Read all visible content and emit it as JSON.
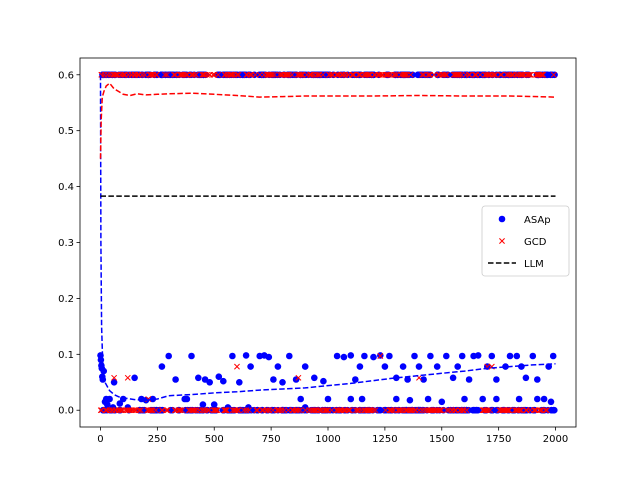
{
  "chart_data": {
    "type": "scatter",
    "title": "",
    "xlabel": "",
    "ylabel": "",
    "xlim": [
      -90,
      2090
    ],
    "ylim": [
      -0.03,
      0.63
    ],
    "x_ticks": [
      0,
      250,
      500,
      750,
      1000,
      1250,
      1500,
      1750,
      2000
    ],
    "x_tick_labels": [
      "0",
      "250",
      "500",
      "750",
      "1000",
      "1250",
      "1500",
      "1750",
      "2000"
    ],
    "y_ticks": [
      0.0,
      0.1,
      0.2,
      0.3,
      0.4,
      0.5,
      0.6
    ],
    "y_tick_labels": [
      "0.0",
      "0.1",
      "0.2",
      "0.3",
      "0.4",
      "0.5",
      "0.6"
    ],
    "grid": false,
    "legend": {
      "placement": "center-right",
      "entries": [
        "ASAp",
        "GCD",
        "LLM"
      ]
    },
    "series": [
      {
        "name": "ASAp",
        "kind": "scatter",
        "marker": "circle",
        "color": "#0000ff",
        "x": [
          0,
          2,
          4,
          6,
          8,
          10,
          14,
          20,
          30,
          60,
          100,
          150,
          180,
          230,
          270,
          300,
          330,
          370,
          400,
          430,
          460,
          480,
          520,
          540,
          560,
          580,
          610,
          640,
          660,
          700,
          720,
          740,
          760,
          780,
          800,
          830,
          860,
          880,
          900,
          940,
          980,
          1040,
          1070,
          1100,
          1120,
          1140,
          1160,
          1200,
          1230,
          1250,
          1270,
          1300,
          1330,
          1350,
          1380,
          1400,
          1420,
          1450,
          1480,
          1520,
          1550,
          1570,
          1590,
          1620,
          1640,
          1660,
          1700,
          1720,
          1740,
          1780,
          1800,
          1830,
          1850,
          1870,
          1900,
          1920,
          1950,
          1970,
          1990,
          25,
          40,
          55,
          85,
          120,
          200,
          380,
          450,
          500,
          650,
          900,
          1000,
          1100,
          1150,
          1300,
          1360,
          1440,
          1500,
          1600,
          1680,
          1740,
          1840,
          1920,
          1980
        ],
        "y": [
          0.098,
          0.09,
          0.08,
          0.075,
          0.06,
          0.055,
          0.07,
          0.015,
          0.01,
          0.05,
          0.02,
          0.058,
          0.02,
          0.02,
          0.078,
          0.097,
          0.055,
          0.02,
          0.097,
          0.058,
          0.055,
          0.05,
          0.06,
          0.052,
          0.005,
          0.097,
          0.05,
          0.098,
          0.078,
          0.097,
          0.098,
          0.095,
          0.055,
          0.078,
          0.05,
          0.097,
          0.055,
          0.02,
          0.078,
          0.058,
          0.052,
          0.097,
          0.095,
          0.098,
          0.055,
          0.078,
          0.097,
          0.095,
          0.098,
          0.078,
          0.097,
          0.058,
          0.078,
          0.055,
          0.097,
          0.078,
          0.055,
          0.097,
          0.078,
          0.097,
          0.058,
          0.078,
          0.097,
          0.055,
          0.097,
          0.098,
          0.078,
          0.097,
          0.055,
          0.078,
          0.097,
          0.097,
          0.078,
          0.058,
          0.097,
          0.055,
          0.02,
          0.078,
          0.097,
          0.02,
          0.02,
          0.005,
          0.012,
          0.005,
          0.018,
          0.02,
          0.01,
          0.01,
          0.005,
          0.005,
          0.02,
          0.02,
          0.02,
          0.02,
          0.018,
          0.02,
          0.015,
          0.02,
          0.02,
          0.02,
          0.02,
          0.02,
          0.015
        ],
        "dense_band_y": [
          0.0,
          0.6
        ],
        "dense_band_x": [
          0,
          2000
        ],
        "running_mean": {
          "line_style": "dashed",
          "x": [
            0,
            2,
            5,
            10,
            20,
            40,
            60,
            80,
            100,
            150,
            200,
            250,
            300,
            400,
            500,
            600,
            700,
            800,
            900,
            1000,
            1100,
            1200,
            1300,
            1400,
            1500,
            1600,
            1700,
            1800,
            1900,
            2000
          ],
          "y": [
            0.6,
            0.3,
            0.15,
            0.08,
            0.05,
            0.035,
            0.028,
            0.024,
            0.022,
            0.019,
            0.018,
            0.02,
            0.026,
            0.028,
            0.031,
            0.033,
            0.036,
            0.038,
            0.04,
            0.044,
            0.048,
            0.053,
            0.058,
            0.062,
            0.066,
            0.07,
            0.075,
            0.078,
            0.081,
            0.083
          ]
        }
      },
      {
        "name": "GCD",
        "kind": "scatter",
        "marker": "x",
        "color": "#ff0000",
        "x": [
          60,
          120,
          210,
          600,
          870,
          1230,
          1400,
          1700,
          1720
        ],
        "y": [
          0.058,
          0.058,
          0.02,
          0.078,
          0.058,
          0.097,
          0.058,
          0.078,
          0.078
        ],
        "dense_band_y": [
          0.0,
          0.6
        ],
        "dense_band_x": [
          0,
          2000
        ],
        "running_mean": {
          "line_style": "dashed",
          "x": [
            0,
            3,
            8,
            15,
            25,
            40,
            60,
            80,
            100,
            130,
            160,
            200,
            250,
            300,
            400,
            500,
            600,
            700,
            800,
            900,
            1000,
            1200,
            1400,
            1600,
            1800,
            2000
          ],
          "y": [
            0.45,
            0.52,
            0.56,
            0.57,
            0.58,
            0.585,
            0.575,
            0.57,
            0.565,
            0.563,
            0.566,
            0.564,
            0.565,
            0.566,
            0.567,
            0.565,
            0.563,
            0.56,
            0.561,
            0.562,
            0.562,
            0.562,
            0.563,
            0.562,
            0.562,
            0.56
          ]
        }
      },
      {
        "name": "LLM",
        "kind": "line",
        "line_style": "dashed",
        "color": "#000000",
        "x": [
          0,
          2000
        ],
        "y": [
          0.383,
          0.383
        ]
      }
    ]
  }
}
